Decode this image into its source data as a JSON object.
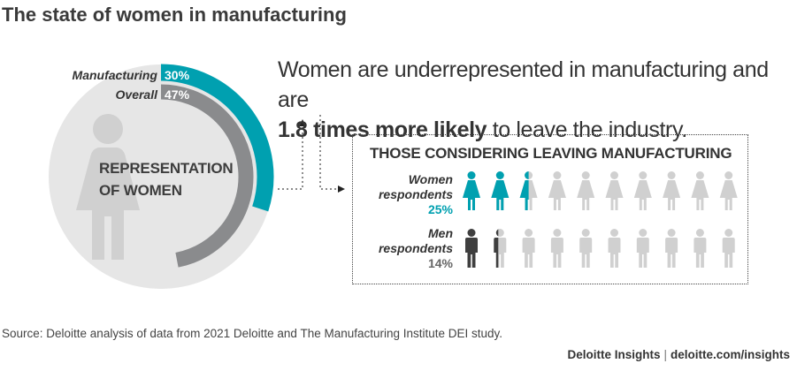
{
  "title": "The state of women in manufacturing",
  "colors": {
    "teal": "#00a0b0",
    "gray": "#8a8b8d",
    "light": "#e6e6e6",
    "icon_gray": "#d0d0d0",
    "dark": "#3f3f3f"
  },
  "donut": {
    "center_label_line1": "REPRESENTATION",
    "center_label_line2": "OF WOMEN",
    "icon": "woman-silhouette-icon"
  },
  "headline": {
    "part1": "Women are underrepresented in manufacturing and are",
    "bold": "1.8 times more likely",
    "part2": " to leave the industry."
  },
  "panel": {
    "title": "THOSE CONSIDERING LEAVING MANUFACTURING",
    "women_label_line1": "Women",
    "women_label_line2": "respondents",
    "men_label_line1": "Men",
    "men_label_line2": "respondents",
    "icon_count": 10
  },
  "chart_data": [
    {
      "type": "donut",
      "series": [
        {
          "name": "Manufacturing",
          "value": 30,
          "label": "30%",
          "color": "#00a0b0"
        },
        {
          "name": "Overall",
          "value": 47,
          "label": "47%",
          "color": "#8a8b8d"
        }
      ],
      "max": 100
    },
    {
      "type": "pictogram",
      "title": "THOSE CONSIDERING LEAVING MANUFACTURING",
      "series": [
        {
          "name": "Women respondents",
          "value": 25,
          "label": "25%",
          "color": "#00a0b0"
        },
        {
          "name": "Men respondents",
          "value": 14,
          "label": "14%",
          "color": "#3f3f3f"
        }
      ],
      "max": 100,
      "icons_per_row": 10
    }
  ],
  "footer": {
    "source": "Source: Deloitte analysis of data from 2021 Deloitte and The Manufacturing Institute DEI study.",
    "brand": "Deloitte Insights",
    "separator": "|",
    "url": "deloitte.com/insights"
  }
}
